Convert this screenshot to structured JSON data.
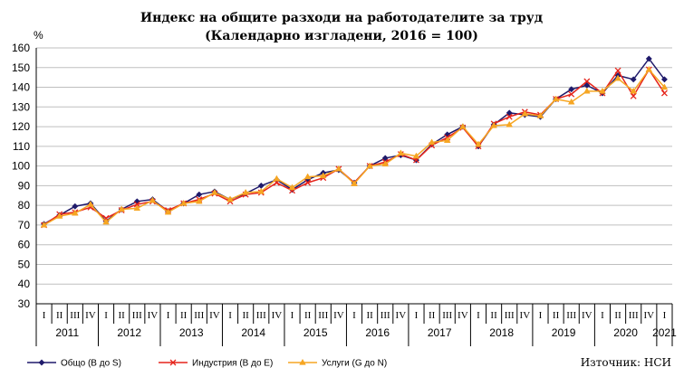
{
  "chart_data": {
    "type": "line",
    "title": "Индекс на общите разходи на работодателите за труд",
    "subtitle": "(Календарно изгладени, 2016 = 100)",
    "ylabel": "%",
    "ylim": [
      30,
      160
    ],
    "yticks": [
      30,
      40,
      50,
      60,
      70,
      80,
      90,
      100,
      110,
      120,
      130,
      140,
      150,
      160
    ],
    "grid": "horizontal",
    "legend_position": "bottom",
    "quarter_labels": [
      "I",
      "II",
      "III",
      "IV"
    ],
    "years": [
      "2011",
      "2012",
      "2013",
      "2014",
      "2015",
      "2016",
      "2017",
      "2018",
      "2019",
      "2020",
      "2021"
    ],
    "source": "Източник: НСИ",
    "series": [
      {
        "name": "Общо (B до S)",
        "color": "#1f1a6b",
        "marker": "diamond",
        "values": [
          70.5,
          75,
          79.5,
          81,
          72,
          78,
          82,
          83,
          77,
          81,
          85.5,
          87,
          83,
          86,
          90,
          93,
          88,
          93,
          96.5,
          98,
          91.5,
          100,
          104,
          105.5,
          103,
          111,
          116,
          120,
          110,
          121,
          127,
          126,
          125,
          134,
          139,
          141,
          137,
          146,
          144,
          154.5,
          144
        ]
      },
      {
        "name": "Индустрия (B до E)",
        "color": "#e5241b",
        "marker": "x",
        "values": [
          70,
          75.5,
          76.5,
          79,
          73.5,
          77.5,
          80.5,
          82,
          77.5,
          81,
          83,
          86,
          82,
          85.5,
          86.5,
          91.5,
          87.5,
          91.5,
          94,
          98.5,
          91.5,
          100,
          102,
          106,
          103,
          110.5,
          114.5,
          119.5,
          110,
          121.5,
          125,
          127.5,
          126,
          134,
          136.5,
          143,
          137,
          148.5,
          135.5,
          149,
          137
        ]
      },
      {
        "name": "Услуги (G до N)",
        "color": "#f6a623",
        "marker": "triangle",
        "values": [
          70,
          74.5,
          76,
          80.5,
          71.5,
          78,
          78.5,
          82.5,
          76.5,
          81,
          82,
          86.5,
          83,
          86.5,
          87,
          93.5,
          89,
          94.5,
          95,
          98.5,
          91,
          100,
          101,
          106.5,
          105,
          112,
          113,
          120,
          111,
          120.5,
          121,
          126.5,
          125.5,
          134,
          132.5,
          138,
          138,
          144.5,
          138,
          149,
          140
        ]
      }
    ]
  }
}
